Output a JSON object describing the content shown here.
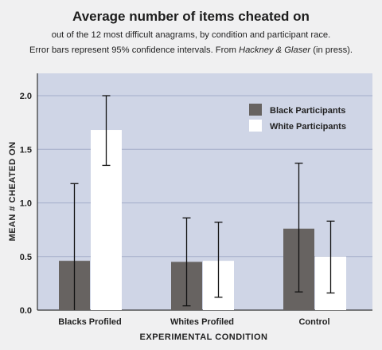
{
  "header": {
    "title": "Average number of items cheated on",
    "subtitle_line1": "out of the 12 most difficult anagrams, by condition and participant race.",
    "subtitle_line2_prefix": "Error bars represent 95% confidence intervals. From ",
    "subtitle_line2_cite": "Hackney & Glaser",
    "subtitle_line2_suffix": " (in press)."
  },
  "chart_data": {
    "type": "bar",
    "title": "Average number of items cheated on",
    "xlabel": "EXPERIMENTAL CONDITION",
    "ylabel": "MEAN # CHEATED ON",
    "ylim": [
      0,
      2.1
    ],
    "yticks": [
      "0.0",
      "0.5",
      "1.0",
      "1.5",
      "2.0"
    ],
    "categories": [
      "Blacks Profiled",
      "Whites Profiled",
      "Control"
    ],
    "series": [
      {
        "name": "Black Participants",
        "color": "#676361",
        "values": [
          0.46,
          0.45,
          0.76
        ],
        "ci_low": [
          -0.26,
          0.04,
          0.17
        ],
        "ci_high": [
          1.18,
          0.86,
          1.37
        ]
      },
      {
        "name": "White Participants",
        "color": "#ffffff",
        "values": [
          1.68,
          0.46,
          0.5
        ],
        "ci_low": [
          1.35,
          0.12,
          0.16
        ],
        "ci_high": [
          2.0,
          0.82,
          0.83
        ]
      }
    ],
    "grid": true,
    "plot_background": "#cfd5e6",
    "legend_position": "top-right"
  }
}
